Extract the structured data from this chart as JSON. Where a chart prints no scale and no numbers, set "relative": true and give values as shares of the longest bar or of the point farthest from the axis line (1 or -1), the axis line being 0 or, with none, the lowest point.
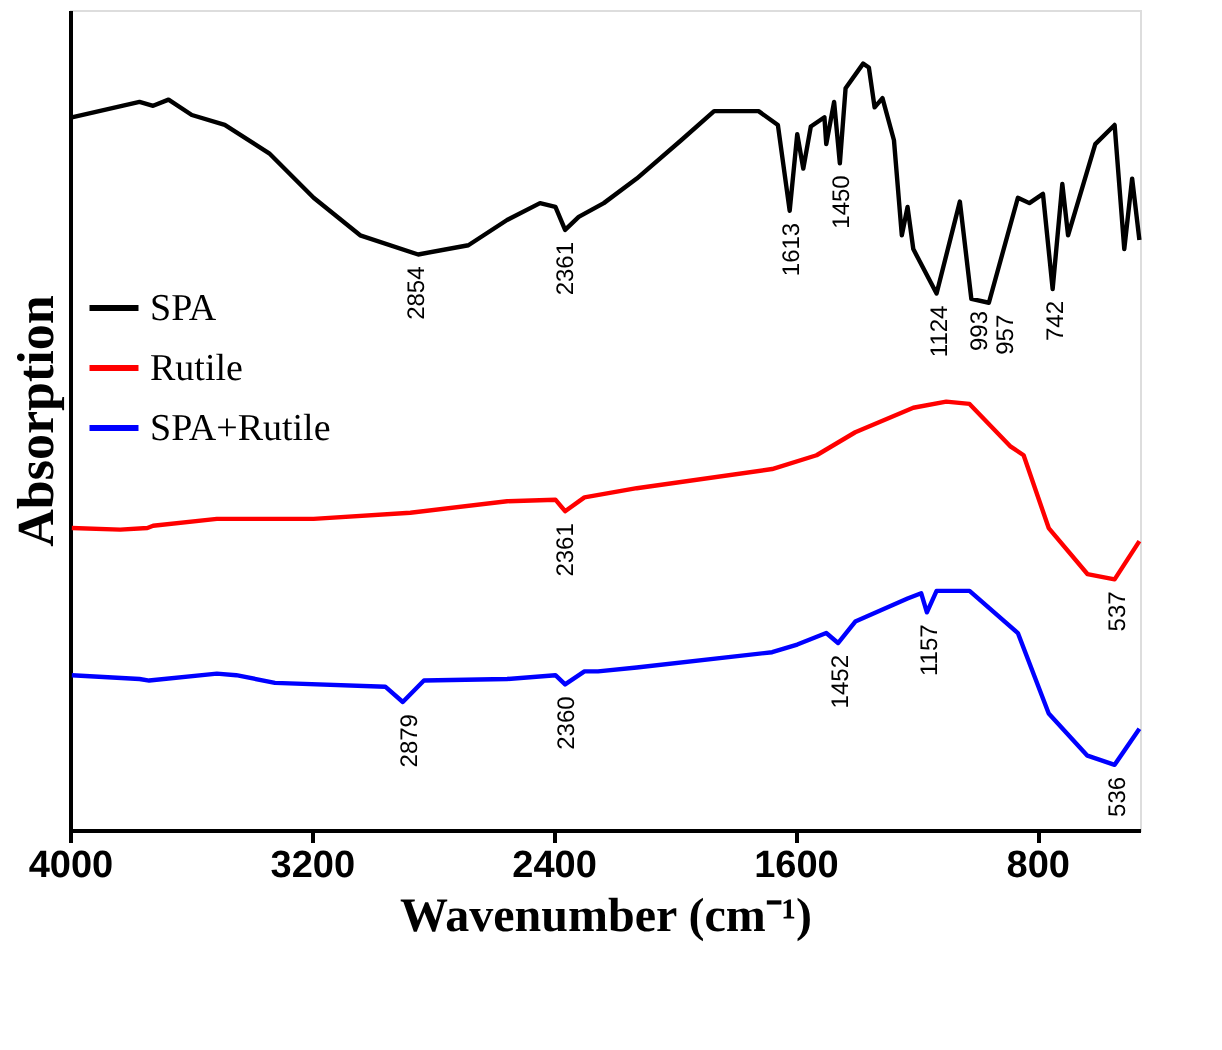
{
  "chart_data": {
    "type": "line",
    "relative": true,
    "xlabel": "Wavenumber (cm⁻¹)",
    "ylabel": "Absorption",
    "xlim": [
      4000,
      460
    ],
    "xticks": [
      4000,
      3200,
      2400,
      1600,
      800
    ],
    "legend": "top left",
    "series": [
      {
        "name": "SPA",
        "color": "#000000",
        "x": [
          3994,
          3770,
          3725,
          3674,
          3597,
          3488,
          3341,
          3194,
          3040,
          2848,
          2682,
          2554,
          2445,
          2394,
          2362,
          2317,
          2234,
          2125,
          1978,
          1869,
          1722,
          1658,
          1619,
          1594,
          1574,
          1549,
          1504,
          1498,
          1472,
          1453,
          1434,
          1376,
          1357,
          1338,
          1312,
          1274,
          1248,
          1229,
          1210,
          1133,
          1056,
          1018,
          960,
          864,
          826,
          781,
          749,
          717,
          698,
          608,
          544,
          512,
          486,
          462
        ],
        "values": [
          0.93,
          0.95,
          0.945,
          0.953,
          0.933,
          0.92,
          0.883,
          0.825,
          0.776,
          0.751,
          0.763,
          0.796,
          0.818,
          0.813,
          0.783,
          0.8,
          0.818,
          0.85,
          0.9,
          0.938,
          0.938,
          0.92,
          0.808,
          0.908,
          0.863,
          0.918,
          0.93,
          0.895,
          0.95,
          0.87,
          0.968,
          1,
          0.995,
          0.943,
          0.955,
          0.9,
          0.776,
          0.813,
          0.758,
          0.7,
          0.82,
          0.693,
          0.688,
          0.825,
          0.818,
          0.83,
          0.706,
          0.843,
          0.776,
          0.895,
          0.92,
          0.758,
          0.85,
          0.77
        ]
      },
      {
        "name": "Rutile",
        "color": "#ff0000",
        "x": [
          3994,
          3834,
          3744,
          3725,
          3514,
          3194,
          2874,
          2554,
          2394,
          2362,
          2298,
          2125,
          1677,
          1530,
          1402,
          1210,
          1101,
          1024,
          890,
          845,
          762,
          634,
          544,
          462
        ],
        "values": [
          0.394,
          0.392,
          0.394,
          0.397,
          0.406,
          0.406,
          0.414,
          0.429,
          0.431,
          0.416,
          0.434,
          0.446,
          0.471,
          0.489,
          0.519,
          0.551,
          0.559,
          0.556,
          0.501,
          0.489,
          0.394,
          0.334,
          0.327,
          0.377
        ]
      },
      {
        "name": "SPA+Rutile",
        "color": "#0000ff",
        "x": [
          3994,
          3770,
          3738,
          3514,
          3450,
          3322,
          2957,
          2899,
          2829,
          2554,
          2394,
          2362,
          2298,
          2253,
          2125,
          1677,
          1594,
          1498,
          1459,
          1402,
          1229,
          1184,
          1165,
          1133,
          1024,
          864,
          762,
          634,
          544,
          462
        ],
        "values": [
          0.202,
          0.197,
          0.195,
          0.204,
          0.202,
          0.192,
          0.187,
          0.167,
          0.195,
          0.197,
          0.202,
          0.19,
          0.207,
          0.207,
          0.212,
          0.232,
          0.242,
          0.257,
          0.244,
          0.272,
          0.302,
          0.309,
          0.284,
          0.312,
          0.312,
          0.257,
          0.152,
          0.097,
          0.085,
          0.132
        ]
      }
    ],
    "annotations": [
      {
        "text": "2854",
        "x": 2854,
        "y": 0.751
      },
      {
        "text": "2361",
        "x": 2361,
        "y": 0.783
      },
      {
        "text": "1613",
        "x": 1613,
        "y": 0.808
      },
      {
        "text": "1450",
        "x": 1450,
        "y": 0.87
      },
      {
        "text": "1124",
        "x": 1124,
        "y": 0.7
      },
      {
        "text": "993",
        "x": 993,
        "y": 0.693
      },
      {
        "text": "957",
        "x": 957,
        "y": 0.688
      },
      {
        "text": "742",
        "x": 742,
        "y": 0.706
      },
      {
        "text": "2361",
        "x": 2361,
        "y": 0.416
      },
      {
        "text": "537",
        "x": 537,
        "y": 0.327
      },
      {
        "text": "2879",
        "x": 2879,
        "y": 0.167
      },
      {
        "text": "2360",
        "x": 2360,
        "y": 0.19
      },
      {
        "text": "1452",
        "x": 1452,
        "y": 0.244
      },
      {
        "text": "1157",
        "x": 1157,
        "y": 0.284
      },
      {
        "text": "536",
        "x": 536,
        "y": 0.085
      }
    ]
  }
}
